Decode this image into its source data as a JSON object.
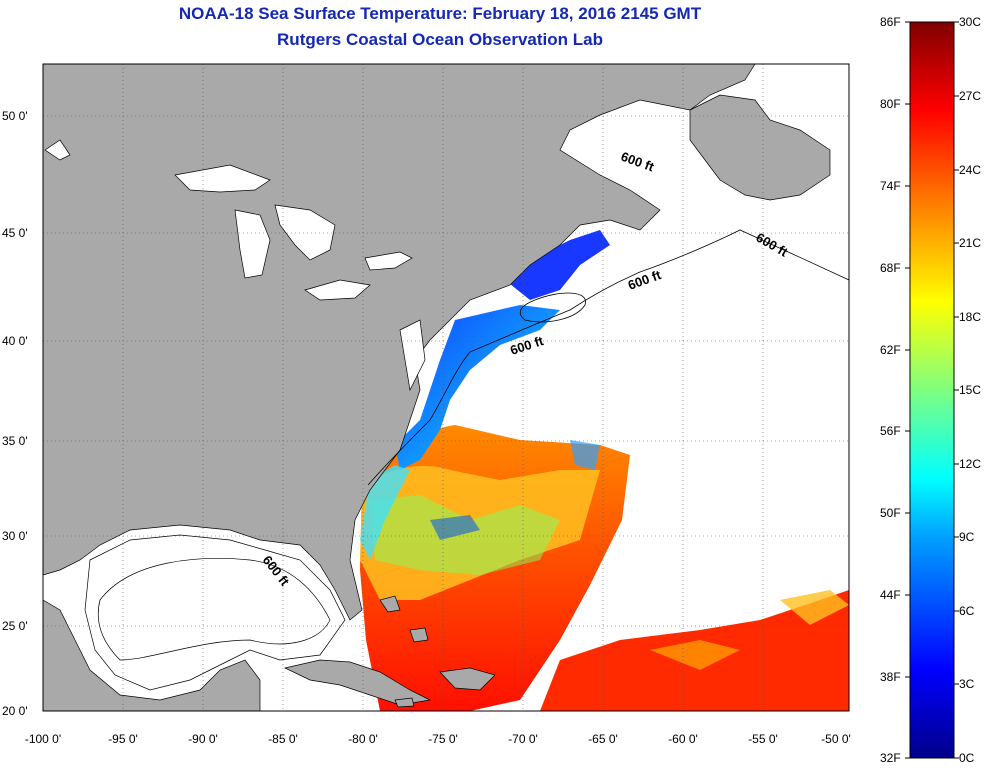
{
  "title": "NOAA-18 Sea Surface Temperature:  February 18, 2016 2145 GMT",
  "subtitle": "Rutgers Coastal Ocean Observation Lab",
  "lat_labels": [
    "50 0'",
    "45 0'",
    "40 0'",
    "35 0'",
    "30 0'",
    "25 0'",
    "20 0'"
  ],
  "lon_labels": [
    "-100 0'",
    "-95 0'",
    "-90 0'",
    "-85 0'",
    "-80 0'",
    "-75 0'",
    "-70 0'",
    "-65 0'",
    "-60 0'",
    "-55 0'",
    "-50 0'"
  ],
  "contour_label": "600 ft",
  "colorbar": {
    "fahrenheit": [
      "86F",
      "80F",
      "74F",
      "68F",
      "62F",
      "56F",
      "50F",
      "44F",
      "38F",
      "32F"
    ],
    "celsius": [
      "30C",
      "27C",
      "24C",
      "21C",
      "18C",
      "15C",
      "12C",
      "9C",
      "6C",
      "3C",
      "0C"
    ]
  },
  "colors": {
    "land": "#a9a9a9",
    "cloud": "#ffffff",
    "title": "#1428b4"
  }
}
